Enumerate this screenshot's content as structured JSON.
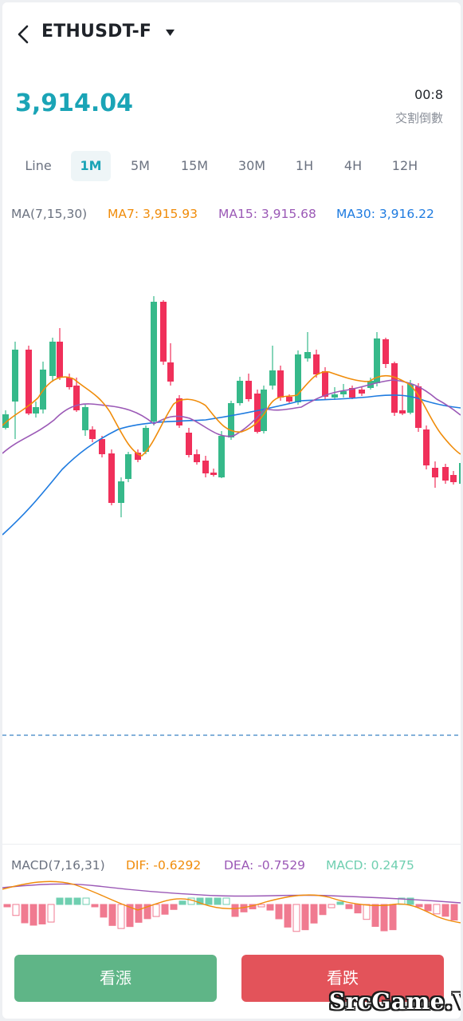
{
  "header": {
    "symbol": "ETHUSDT-F"
  },
  "ticker": {
    "price": "3,914.04",
    "countdown": "00:8",
    "countdown_label": "交割倒數"
  },
  "colors": {
    "up": "#36b98a",
    "down": "#f0305a",
    "price": "#1aa4b6",
    "ma7": "#f08c0a",
    "ma15": "#9b59b6",
    "ma30": "#1e7be0",
    "dif": "#f08c0a",
    "dea": "#9b59b6",
    "macd": "#6fcfb0",
    "buy": "#5fb587",
    "sell": "#e3535a"
  },
  "tabs": [
    "Line",
    "1M",
    "5M",
    "15M",
    "30M",
    "1H",
    "4H",
    "12H"
  ],
  "active_tab": "1M",
  "ma": {
    "label": "MA(7,15,30)",
    "ma7": "MA7: 3,915.93",
    "ma15": "MA15: 3,915.68",
    "ma30": "MA30: 3,916.22"
  },
  "macd": {
    "label": "MACD(7,16,31)",
    "dif": "DIF: -0.6292",
    "dea": "DEA: -0.7529",
    "macd": "MACD: 0.2475"
  },
  "actions": {
    "buy": "看漲",
    "sell": "看跌"
  },
  "watermark": "SrcGame.Vip"
}
